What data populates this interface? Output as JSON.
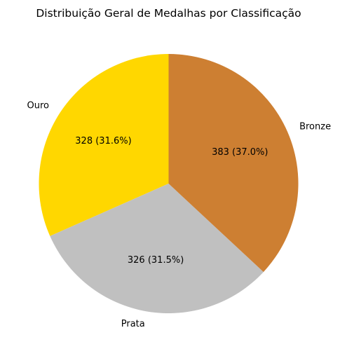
{
  "chart_data": {
    "type": "pie",
    "title": "Distribuição Geral de Medalhas por Classificação",
    "categories": [
      "Ouro",
      "Prata",
      "Bronze"
    ],
    "values": [
      328,
      326,
      383
    ],
    "percent_labels": [
      "328 (31.6%)",
      "326 (31.5%)",
      "383 (37.0%)"
    ],
    "colors": [
      "#FFD700",
      "#C0C0C0",
      "#CD7F32"
    ],
    "start_angle_deg": 90,
    "direction": "counterclockwise"
  }
}
